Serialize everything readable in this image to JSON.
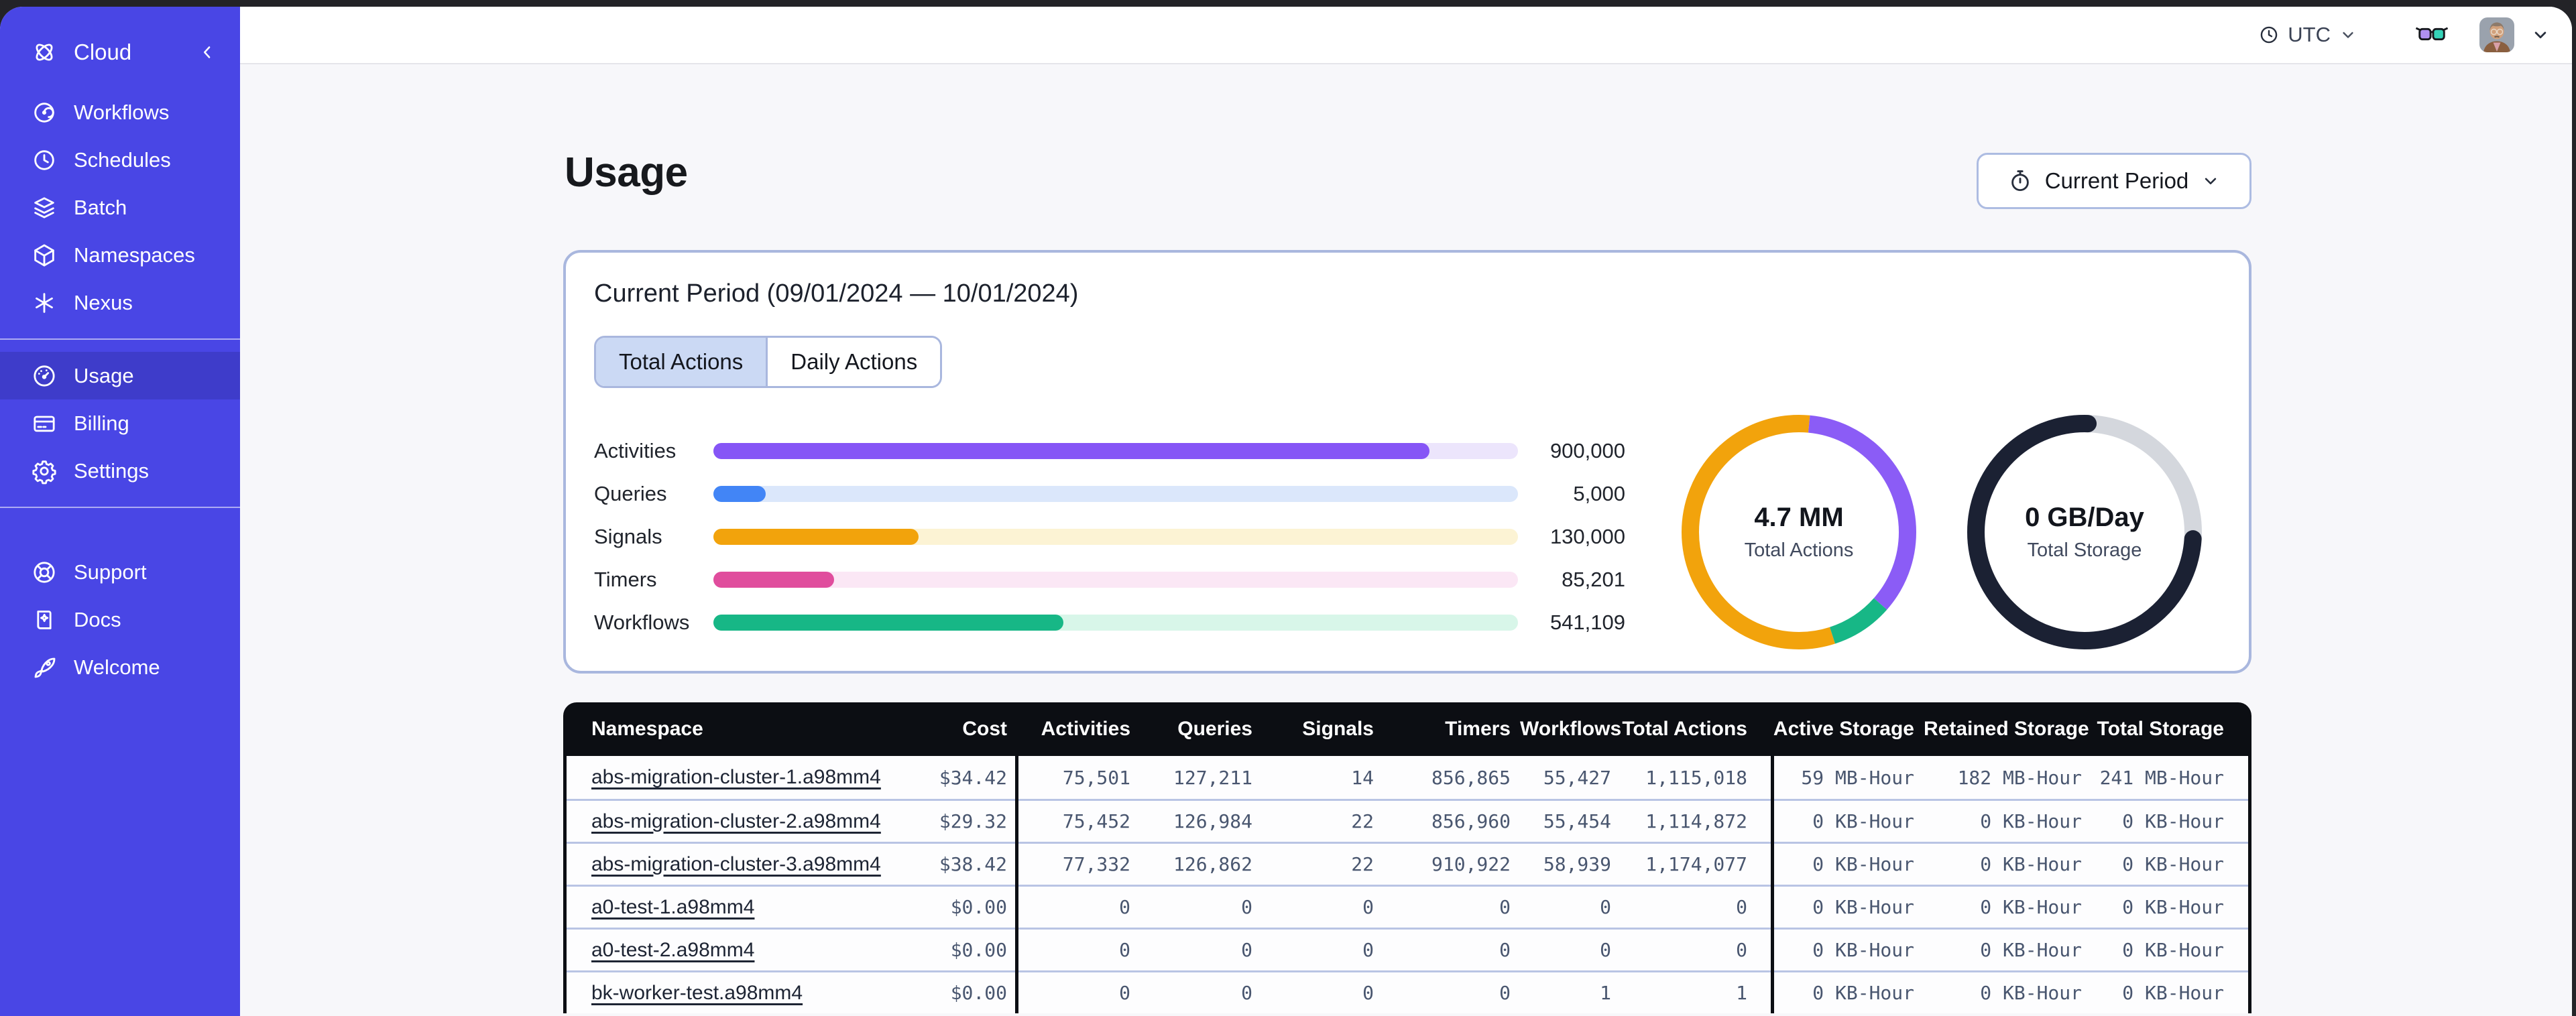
{
  "topbar": {
    "timezone_label": "UTC"
  },
  "sidebar": {
    "brand": "Cloud",
    "groups": [
      {
        "items": [
          {
            "label": "Workflows",
            "icon": "workflows"
          },
          {
            "label": "Schedules",
            "icon": "schedules"
          },
          {
            "label": "Batch",
            "icon": "batch"
          },
          {
            "label": "Namespaces",
            "icon": "namespaces"
          },
          {
            "label": "Nexus",
            "icon": "nexus"
          }
        ]
      },
      {
        "items": [
          {
            "label": "Usage",
            "icon": "usage",
            "active": true
          },
          {
            "label": "Billing",
            "icon": "billing"
          },
          {
            "label": "Settings",
            "icon": "settings"
          }
        ]
      },
      {
        "items": [
          {
            "label": "Support",
            "icon": "support"
          },
          {
            "label": "Docs",
            "icon": "docs"
          },
          {
            "label": "Welcome",
            "icon": "welcome"
          }
        ]
      }
    ]
  },
  "page": {
    "title": "Usage",
    "period_button": "Current Period"
  },
  "usage_card": {
    "title": "Current Period (09/01/2024 — 10/01/2024)",
    "tabs": [
      {
        "label": "Total Actions",
        "active": true
      },
      {
        "label": "Daily Actions",
        "active": false
      }
    ]
  },
  "chart_data": [
    {
      "type": "bar",
      "orientation": "horizontal",
      "title": "Actions by type (current period)",
      "categories": [
        "Activities",
        "Queries",
        "Signals",
        "Timers",
        "Workflows"
      ],
      "values": [
        900000,
        5000,
        130000,
        85201,
        541109
      ],
      "value_labels": [
        "900,000",
        "5,000",
        "130,000",
        "85,201",
        "541,109"
      ],
      "fill_fractions": [
        0.89,
        0.065,
        0.255,
        0.15,
        0.435
      ],
      "bar_colors": [
        "#8655f6",
        "#4285f6",
        "#f2a30c",
        "#e04d9d",
        "#17b786"
      ],
      "track_colors": [
        "#ece5fc",
        "#dbe7fb",
        "#fcf3d4",
        "#fbe7f5",
        "#d8f6e9"
      ]
    },
    {
      "type": "pie",
      "title": "Total Actions donut",
      "center_value": "4.7 MM",
      "center_label": "Total Actions",
      "slices": [
        {
          "name": "signals-orange",
          "color": "#f2a30c",
          "start_pct": 45,
          "end_pct": 101.5,
          "cap": "butt"
        },
        {
          "name": "activities-purple",
          "color": "#8b5cf6",
          "start_pct": 1.5,
          "end_pct": 36.5,
          "cap": "butt"
        },
        {
          "name": "workflows-green",
          "color": "#17b786",
          "start_pct": 36.5,
          "end_pct": 45,
          "cap": "butt"
        }
      ]
    },
    {
      "type": "pie",
      "title": "Total Storage donut",
      "center_value": "0 GB/Day",
      "center_label": "Total Storage",
      "slices": [
        {
          "name": "used-gray",
          "color": "#d4d7dd",
          "start_pct": 0,
          "end_pct": 100,
          "cap": "butt"
        },
        {
          "name": "remaining-dark",
          "color": "#1b2133",
          "start_pct": 26,
          "end_pct": 100.5,
          "cap": "round"
        }
      ]
    }
  ],
  "table": {
    "columns": [
      "Namespace",
      "Cost",
      "Activities",
      "Queries",
      "Signals",
      "Timers",
      "Workflows",
      "Total Actions",
      "Active Storage",
      "Retained Storage",
      "Total Storage"
    ],
    "rows": [
      [
        "abs-migration-cluster-1.a98mm4",
        "$34.42",
        "75,501",
        "127,211",
        "14",
        "856,865",
        "55,427",
        "1,115,018",
        "59 MB-Hour",
        "182 MB-Hour",
        "241 MB-Hour"
      ],
      [
        "abs-migration-cluster-2.a98mm4",
        "$29.32",
        "75,452",
        "126,984",
        "22",
        "856,960",
        "55,454",
        "1,114,872",
        "0 KB-Hour",
        "0 KB-Hour",
        "0 KB-Hour"
      ],
      [
        "abs-migration-cluster-3.a98mm4",
        "$38.42",
        "77,332",
        "126,862",
        "22",
        "910,922",
        "58,939",
        "1,174,077",
        "0 KB-Hour",
        "0 KB-Hour",
        "0 KB-Hour"
      ],
      [
        "a0-test-1.a98mm4",
        "$0.00",
        "0",
        "0",
        "0",
        "0",
        "0",
        "0",
        "0 KB-Hour",
        "0 KB-Hour",
        "0 KB-Hour"
      ],
      [
        "a0-test-2.a98mm4",
        "$0.00",
        "0",
        "0",
        "0",
        "0",
        "0",
        "0",
        "0 KB-Hour",
        "0 KB-Hour",
        "0 KB-Hour"
      ],
      [
        "bk-worker-test.a98mm4",
        "$0.00",
        "0",
        "0",
        "0",
        "0",
        "1",
        "1",
        "0 KB-Hour",
        "0 KB-Hour",
        "0 KB-Hour"
      ]
    ]
  }
}
